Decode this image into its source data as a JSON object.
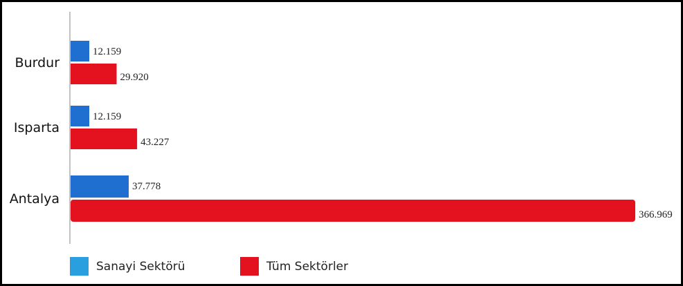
{
  "chart_data": {
    "type": "bar",
    "orientation": "horizontal",
    "categories": [
      "Burdur",
      "Isparta",
      "Antalya"
    ],
    "series": [
      {
        "name": "Sanayi Sektörü",
        "color": "#1f6fd0",
        "values": [
          12159,
          12159,
          37778
        ],
        "labels": [
          "12.159",
          "12.159",
          "37.778"
        ]
      },
      {
        "name": "Tüm Sektörler",
        "color": "#e3121e",
        "values": [
          29920,
          43227,
          366969
        ],
        "labels": [
          "29.920",
          "43.227",
          "366.969"
        ]
      }
    ],
    "title": "",
    "xlabel": "",
    "ylabel": "",
    "legend_position": "bottom-left",
    "grid": false,
    "xlim": [
      0,
      366969
    ]
  },
  "legend": {
    "items": [
      {
        "label": "Sanayi Sektörü",
        "color": "#2a9fe0"
      },
      {
        "label": "Tüm Sektörler",
        "color": "#e3121e"
      }
    ]
  }
}
